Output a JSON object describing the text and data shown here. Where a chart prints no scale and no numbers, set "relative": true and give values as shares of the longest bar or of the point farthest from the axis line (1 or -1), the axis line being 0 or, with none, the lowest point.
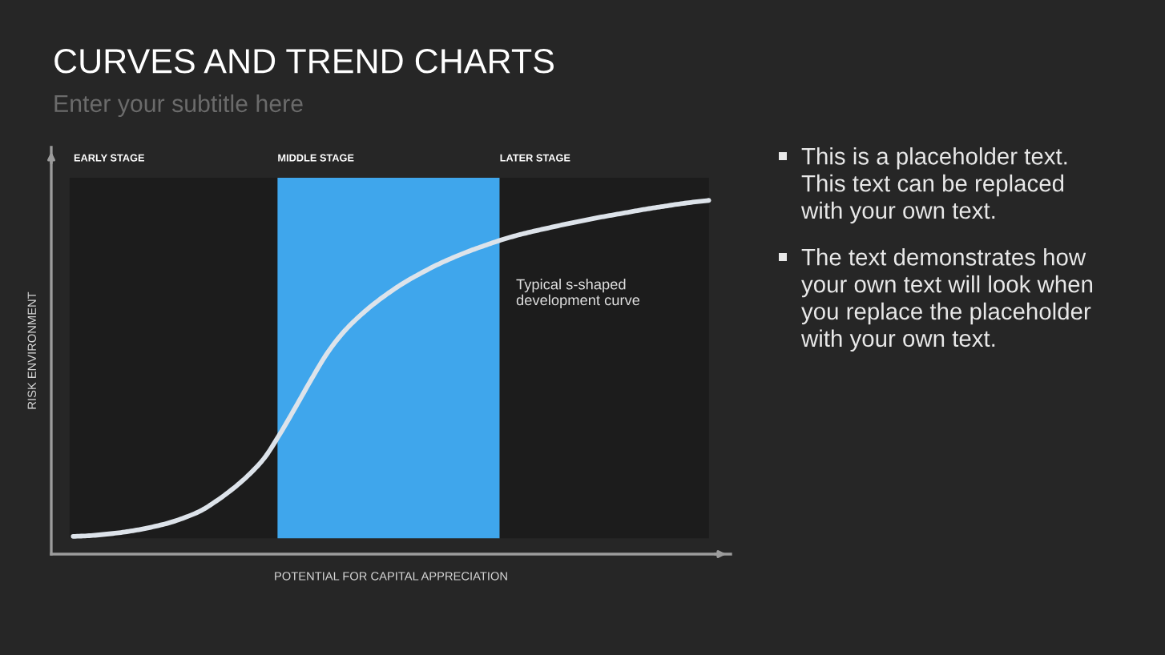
{
  "chart_data": {
    "type": "line",
    "title": "CURVES AND TREND CHARTS",
    "subtitle": "Enter your subtitle here",
    "xlabel": "POTENTIAL FOR CAPITAL APPRECIATION",
    "ylabel": "RISK ENVIRONMENT",
    "relative": true,
    "line_style": "solid",
    "categories": [
      null,
      null,
      null,
      null,
      null,
      null,
      null,
      null,
      null,
      null,
      null,
      null,
      null,
      null,
      null,
      null,
      null,
      null,
      null,
      null,
      null,
      null,
      null,
      null,
      null,
      null,
      null,
      null,
      null,
      null,
      null,
      null,
      null,
      null,
      null,
      null,
      null,
      null,
      null,
      null,
      null
    ],
    "series": [
      {
        "color": "#dde3ea",
        "values": [
          0.05,
          0.052,
          0.056,
          0.061,
          0.068,
          0.077,
          0.088,
          0.103,
          0.122,
          0.15,
          0.183,
          0.222,
          0.27,
          0.339,
          0.416,
          0.495,
          0.569,
          0.627,
          0.672,
          0.71,
          0.743,
          0.772,
          0.797,
          0.82,
          0.84,
          0.858,
          0.874,
          0.889,
          0.902,
          0.913,
          0.923,
          0.933,
          0.942,
          0.951,
          0.959,
          0.967,
          0.975,
          0.982,
          0.989,
          0.995,
          1
        ]
      }
    ],
    "annotations": [
      "EARLY STAGE",
      "MIDDLE STAGE",
      "LATER STAGE",
      "Typical s-shaped\ndevelopment curve",
      "This is a placeholder text.\nThis text can be replaced\nwith your own text.",
      "The text demonstrates how\nyour own text will look when\nyou replace the placeholder\nwith your own text."
    ]
  }
}
